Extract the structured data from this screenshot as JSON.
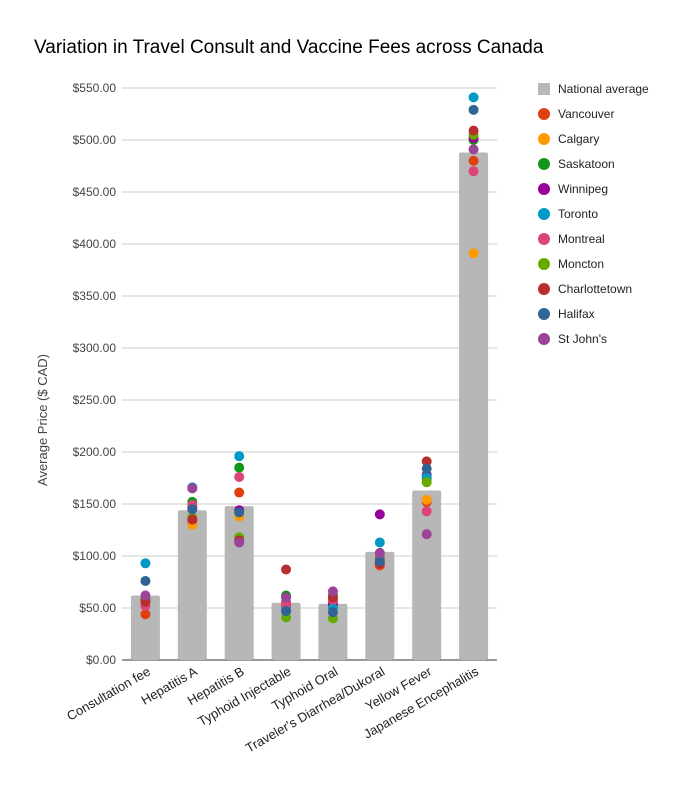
{
  "chart_data": {
    "type": "bar",
    "title": "Variation in Travel Consult and Vaccine Fees across Canada",
    "xlabel": "",
    "ylabel": "Average Price ($ CAD)",
    "ylim": [
      0,
      550
    ],
    "yticks": [
      "$0.00",
      "$50.00",
      "$100.00",
      "$150.00",
      "$200.00",
      "$250.00",
      "$300.00",
      "$350.00",
      "$400.00",
      "$450.00",
      "$500.00",
      "$550.00"
    ],
    "grid": true,
    "legend_position": "right",
    "categories": [
      "Consultation fee",
      "Hepatitis A",
      "Hepatitis B",
      "Typhoid Injectable",
      "Typhoid Oral",
      "Traveler's Diarrhea/Dukoral",
      "Yellow Fever",
      "Japanese Encephalitis"
    ],
    "bar_series": {
      "name": "National average",
      "color": "#b7b7b7",
      "values": [
        62,
        144,
        148,
        55,
        54,
        104,
        163,
        488
      ]
    },
    "series": [
      {
        "name": "Vancouver",
        "color": "#e0400f",
        "values": [
          44,
          134,
          161,
          52,
          56,
          91,
          152,
          480
        ]
      },
      {
        "name": "Calgary",
        "color": "#ff9900",
        "values": [
          57,
          130,
          138,
          50,
          51,
          94,
          154,
          391
        ]
      },
      {
        "name": "Saskatoon",
        "color": "#109618",
        "values": [
          58,
          152,
          185,
          62,
          62,
          97,
          174,
          500
        ]
      },
      {
        "name": "Winnipeg",
        "color": "#990099",
        "values": [
          58,
          147,
          144,
          55,
          53,
          140,
          178,
          502
        ]
      },
      {
        "name": "Toronto",
        "color": "#0099c6",
        "values": [
          93,
          166,
          196,
          50,
          50,
          113,
          176,
          541
        ]
      },
      {
        "name": "Montreal",
        "color": "#dd4477",
        "values": [
          52,
          149,
          176,
          54,
          58,
          100,
          143,
          470
        ]
      },
      {
        "name": "Moncton",
        "color": "#66aa00",
        "values": [
          57,
          137,
          118,
          41,
          40,
          96,
          171,
          505
        ]
      },
      {
        "name": "Charlottetown",
        "color": "#b82e2e",
        "values": [
          56,
          135,
          115,
          87,
          60,
          93,
          191,
          509
        ]
      },
      {
        "name": "Halifax",
        "color": "#316395",
        "values": [
          76,
          145,
          142,
          47,
          46,
          95,
          184,
          529
        ]
      },
      {
        "name": "St John's",
        "color": "#994499",
        "values": [
          62,
          165,
          113,
          60,
          66,
          103,
          121,
          491
        ]
      }
    ]
  }
}
